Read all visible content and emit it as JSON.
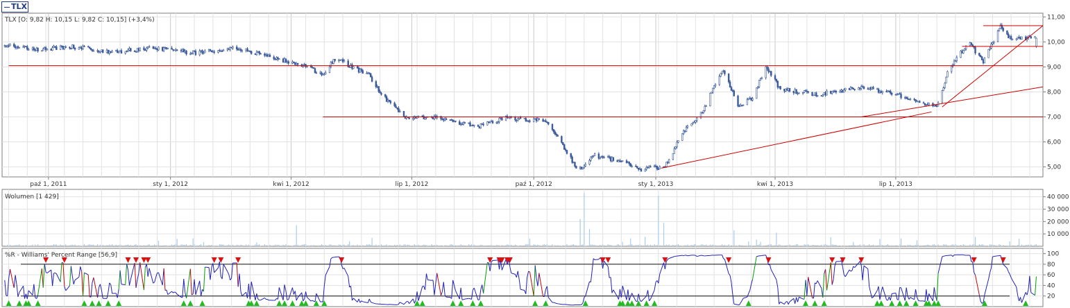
{
  "ticker_tab": {
    "label": "TLX"
  },
  "colors": {
    "candle": "#3b5a9a",
    "trendline": "#cc0000",
    "grid": "#e2e2e2",
    "frame": "#7d7d7d",
    "volume": "#a9cdee",
    "wr_line": "#2020b8",
    "wr_up": "#00a000",
    "wr_down": "#cc0000",
    "marker_down": "#dd1111",
    "marker_up": "#22bb22"
  },
  "price_panel": {
    "label": "TLX [O: 9,82  H: 10,15  L: 9,82  C: 10,15] (+3,4%)",
    "y_ticks": [
      "5,00",
      "6,00",
      "7,00",
      "8,00",
      "9,00",
      "10,00",
      "11,00"
    ],
    "x_ticks": [
      "paź 1, 2011",
      "sty 1, 2012",
      "kwi 1, 2012",
      "lip 1, 2012",
      "paź 1, 2012",
      "sty 1, 2013",
      "kwi 1, 2013",
      "lip 1, 2013"
    ]
  },
  "volume_panel": {
    "label": "Wolumen [1 429]",
    "y_ticks": [
      "10 000",
      "20 000",
      "30 000",
      "40 000"
    ]
  },
  "wr_panel": {
    "label": "%R - Williams' Percent Range [56,9]",
    "y_ticks": [
      "20",
      "40",
      "60",
      "80",
      "100"
    ]
  },
  "chart_data": [
    {
      "type": "candlestick",
      "x_range": [
        "2011-08-27",
        "2013-10-20"
      ],
      "ylim": [
        4.6,
        11.15
      ],
      "price_path": [
        [
          "2011-08-29",
          9.85
        ],
        [
          "2011-09-20",
          9.7
        ],
        [
          "2011-10-20",
          9.8
        ],
        [
          "2011-11-20",
          9.6
        ],
        [
          "2011-12-20",
          9.75
        ],
        [
          "2012-01-20",
          9.55
        ],
        [
          "2012-02-20",
          9.75
        ],
        [
          "2012-03-20",
          9.35
        ],
        [
          "2012-04-10",
          9.05
        ],
        [
          "2012-04-25",
          8.7
        ],
        [
          "2012-05-05",
          9.4
        ],
        [
          "2012-05-15",
          9.05
        ],
        [
          "2012-05-30",
          8.65
        ],
        [
          "2012-06-10",
          7.8
        ],
        [
          "2012-06-25",
          7.0
        ],
        [
          "2012-07-20",
          6.95
        ],
        [
          "2012-08-20",
          6.6
        ],
        [
          "2012-09-10",
          6.95
        ],
        [
          "2012-10-10",
          6.85
        ],
        [
          "2012-10-25",
          5.7
        ],
        [
          "2012-11-03",
          4.85
        ],
        [
          "2012-11-15",
          5.45
        ],
        [
          "2012-12-10",
          5.2
        ],
        [
          "2012-12-20",
          4.9
        ],
        [
          "2013-01-08",
          5.0
        ],
        [
          "2013-01-22",
          6.4
        ],
        [
          "2013-02-06",
          7.3
        ],
        [
          "2013-02-20",
          8.9
        ],
        [
          "2013-03-05",
          7.4
        ],
        [
          "2013-03-15",
          7.8
        ],
        [
          "2013-03-25",
          9.0
        ],
        [
          "2013-04-05",
          8.1
        ],
        [
          "2013-05-05",
          7.9
        ],
        [
          "2013-06-05",
          8.2
        ],
        [
          "2013-07-05",
          7.85
        ],
        [
          "2013-08-01",
          7.4
        ],
        [
          "2013-08-10",
          8.9
        ],
        [
          "2013-08-25",
          10.0
        ],
        [
          "2013-09-05",
          9.2
        ],
        [
          "2013-09-18",
          10.6
        ],
        [
          "2013-09-25",
          10.15
        ],
        [
          "2013-10-15",
          10.15
        ]
      ],
      "last_bar": {
        "open": 9.82,
        "high": 10.15,
        "low": 9.82,
        "close": 10.15,
        "change_pct": 3.4
      },
      "trendlines": [
        {
          "from": [
            "2011-09-01",
            9.05
          ],
          "to": [
            "2013-10-20",
            9.05
          ]
        },
        {
          "from": [
            "2012-04-25",
            7.0
          ],
          "to": [
            "2013-10-20",
            7.0
          ]
        },
        {
          "from": [
            "2013-06-05",
            7.0
          ],
          "to": [
            "2013-10-20",
            8.2
          ]
        },
        {
          "from": [
            "2013-01-05",
            4.95
          ],
          "to": [
            "2013-07-28",
            7.2
          ]
        },
        {
          "from": [
            "2013-08-05",
            7.4
          ],
          "to": [
            "2013-10-20",
            10.65
          ]
        },
        {
          "from": [
            "2013-08-20",
            9.82
          ],
          "to": [
            "2013-10-20",
            9.82
          ]
        },
        {
          "from": [
            "2013-09-05",
            10.65
          ],
          "to": [
            "2013-10-20",
            10.65
          ]
        }
      ]
    },
    {
      "type": "bar",
      "name": "Wolumen",
      "ylim": [
        0,
        46000
      ],
      "typical": 1000,
      "spikes": [
        [
          "2012-04-05",
          17000
        ],
        [
          "2012-11-08",
          43000
        ],
        [
          "2012-11-05",
          22000
        ],
        [
          "2012-11-12",
          14000
        ],
        [
          "2013-01-03",
          41000
        ],
        [
          "2013-01-07",
          19000
        ],
        [
          "2013-03-01",
          13000
        ],
        [
          "2013-04-02",
          11000
        ],
        [
          "2013-08-30",
          7500
        ],
        [
          "2013-09-25",
          4000
        ]
      ]
    },
    {
      "type": "line",
      "name": "%R - Williams' Percent Range",
      "ylim": [
        0,
        110
      ],
      "levels": [
        20,
        80
      ],
      "last_value": 56.9
    }
  ]
}
